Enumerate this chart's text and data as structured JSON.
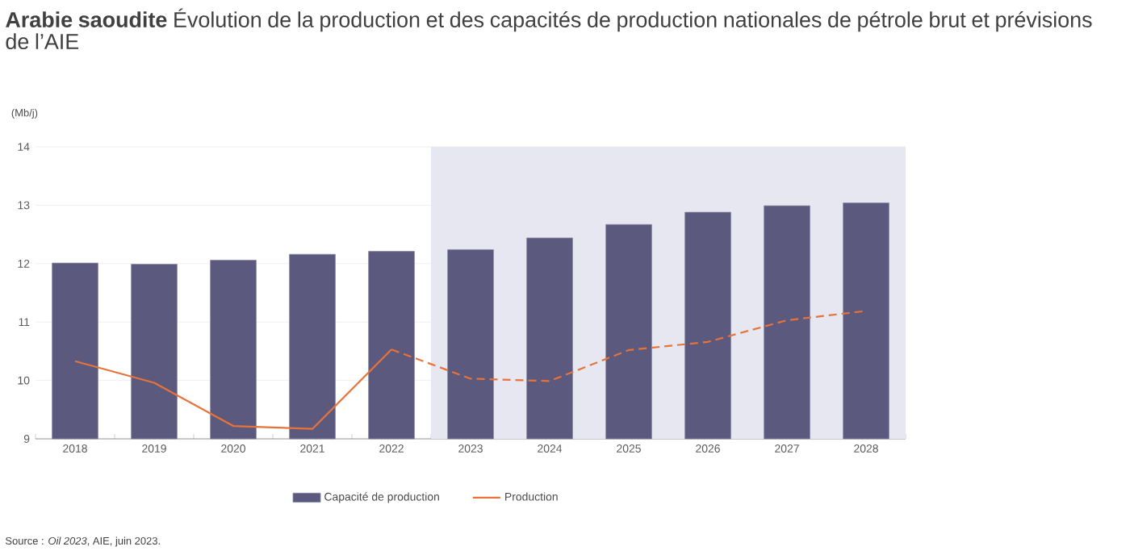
{
  "chart_data": {
    "type": "bar",
    "title": "**Arabie saoudite** Évolution de la production et des capacités de production nationales de pétrole brut et prévisions de l’AIE",
    "ylabel": "(Mb/j)",
    "categories": [
      "2018",
      "2019",
      "2020",
      "2021",
      "2022",
      "2023",
      "2024",
      "2025",
      "2026",
      "2027",
      "2028"
    ],
    "series": [
      {
        "name": "Capacité de production",
        "color": "#5b597e",
        "values": [
          12.01,
          11.99,
          12.06,
          12.16,
          12.21,
          12.24,
          12.44,
          12.67,
          12.88,
          12.99,
          13.04
        ]
      },
      {
        "name": "Production",
        "type": "line",
        "line_style": "solid",
        "color": "#e8733a",
        "values": [
          10.33,
          9.96,
          9.22,
          9.17,
          10.53,
          null,
          null,
          null,
          null,
          null,
          null
        ]
      },
      {
        "type": "line",
        "line_style": "dashed",
        "color": "#e8733a",
        "values": [
          null,
          null,
          null,
          null,
          10.53,
          10.03,
          9.99,
          10.52,
          10.66,
          11.03,
          11.19
        ]
      }
    ],
    "bands": [
      {
        "axis": "x",
        "from": "2023",
        "to": "2028",
        "color": "#e7e7f1"
      }
    ],
    "ylim": [
      9,
      14
    ],
    "yticks": [
      9,
      10,
      11,
      12,
      13,
      14
    ],
    "grid": "y",
    "legend": "bottom",
    "annotations": [
      "Source : *Oil 2023*, AIE, juin 2023."
    ]
  }
}
